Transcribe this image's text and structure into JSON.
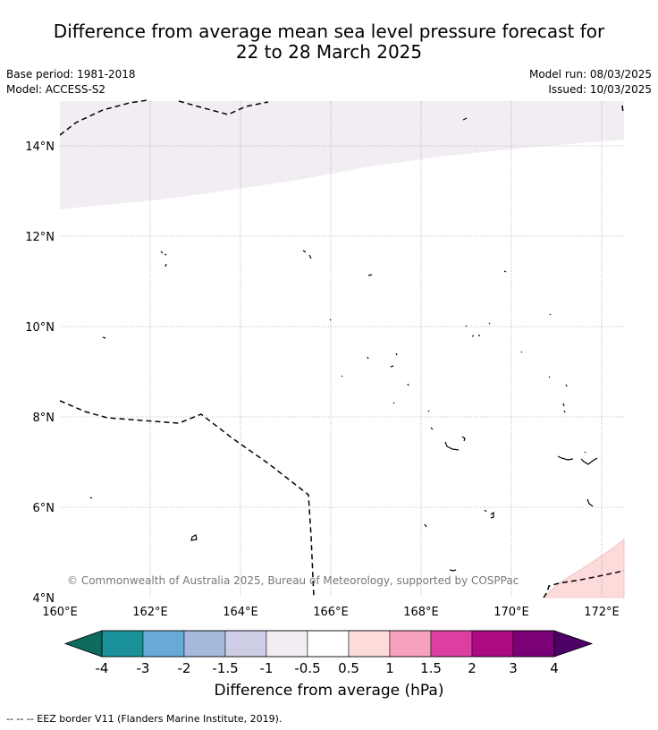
{
  "title_line1": "Difference from average mean sea level pressure forecast for",
  "title_line2": "22 to 28 March 2025",
  "base_period": "Base period: 1981-2018",
  "model": "Model: ACCESS-S2",
  "model_run": "Model run: 08/03/2025",
  "issued": "Issued: 10/03/2025",
  "copyright": "© Commonwealth of Australia 2025, Bureau of Meteorology, supported by COSPPac",
  "lon_ticks": [
    "160°E",
    "162°E",
    "164°E",
    "166°E",
    "168°E",
    "170°E",
    "172°E"
  ],
  "lat_ticks": [
    "14°N",
    "12°N",
    "10°N",
    "8°N",
    "6°N",
    "4°N"
  ],
  "colorbar": {
    "title": "Difference from average (hPa)",
    "labels": [
      "-4",
      "-3",
      "-2",
      "-1.5",
      "-1",
      "-0.5",
      "0.5",
      "1",
      "1.5",
      "2",
      "3",
      "4"
    ],
    "colors": [
      "#0e6b60",
      "#1a9199",
      "#68aad6",
      "#a4b9db",
      "#cdcde5",
      "#f2ecf3",
      "#ffffff",
      "#fddbdb",
      "#f7a1bd",
      "#dd3ea2",
      "#ab0a81",
      "#7a0177",
      "#4d0065"
    ]
  },
  "footer": "--  --  -- EEZ border V11 (Flanders Marine Institute, 2019)."
}
